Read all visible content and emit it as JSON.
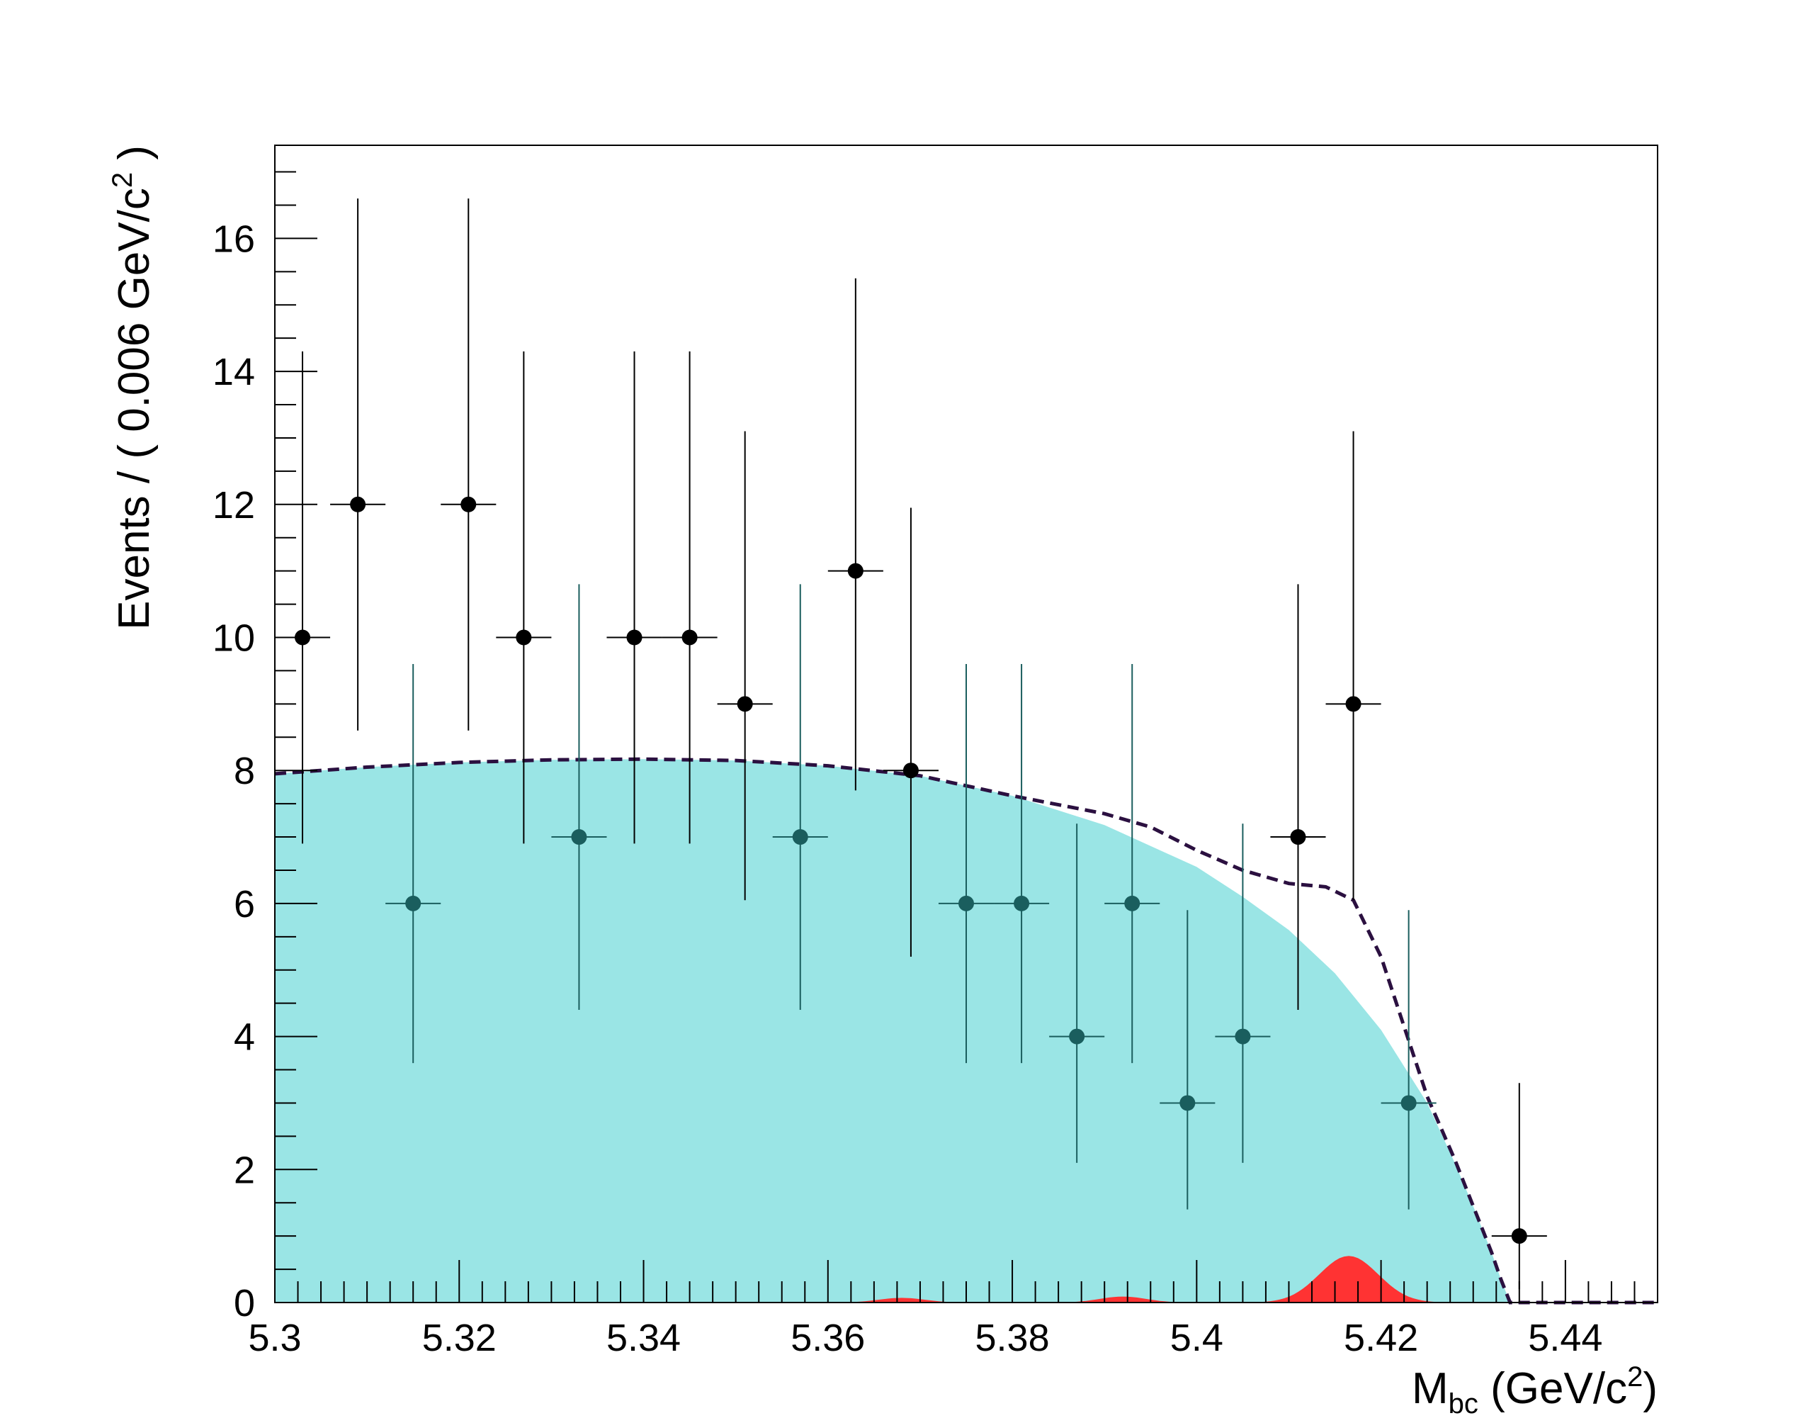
{
  "chart_data": {
    "type": "scatter",
    "xlabel": {
      "main": "M",
      "sub": "bc",
      "unit_pre": " (GeV/c",
      "sup": "2",
      "unit_post": ")"
    },
    "ylabel": {
      "pre": "Events / ( 0.006 GeV/c",
      "sup": "2",
      "post": " )"
    },
    "xlim": [
      5.3,
      5.45
    ],
    "ylim": [
      0,
      17.4
    ],
    "x_ticks": [
      5.3,
      5.32,
      5.34,
      5.36,
      5.38,
      5.4,
      5.42,
      5.44
    ],
    "x_tick_labels": [
      "5.3",
      "5.32",
      "5.34",
      "5.36",
      "5.38",
      "5.4",
      "5.42",
      "5.44"
    ],
    "y_ticks": [
      0,
      2,
      4,
      6,
      8,
      10,
      12,
      14,
      16
    ],
    "y_tick_labels": [
      "0",
      "2",
      "4",
      "6",
      "8",
      "10",
      "12",
      "14",
      "16"
    ],
    "points": {
      "x": [
        5.303,
        5.309,
        5.315,
        5.321,
        5.327,
        5.333,
        5.339,
        5.345,
        5.351,
        5.357,
        5.363,
        5.369,
        5.375,
        5.381,
        5.387,
        5.393,
        5.399,
        5.405,
        5.411,
        5.417,
        5.423,
        5.435
      ],
      "y": [
        10,
        12,
        6,
        12,
        10,
        7,
        10,
        10,
        9,
        7,
        11,
        8,
        6,
        6,
        4,
        6,
        3,
        4,
        7,
        9,
        3,
        1
      ],
      "y_err_low": [
        3.1,
        3.4,
        2.4,
        3.4,
        3.1,
        2.6,
        3.1,
        3.1,
        2.95,
        2.6,
        3.3,
        2.8,
        2.4,
        2.4,
        1.9,
        2.4,
        1.6,
        1.9,
        2.6,
        2.95,
        1.6,
        0.8
      ],
      "y_err_high": [
        4.3,
        4.6,
        3.6,
        4.6,
        4.3,
        3.8,
        4.3,
        4.3,
        4.1,
        3.8,
        4.4,
        3.95,
        3.6,
        3.6,
        3.2,
        3.6,
        2.9,
        3.2,
        3.8,
        4.1,
        2.9,
        2.3
      ],
      "x_err": 0.003
    },
    "background": {
      "name": "background",
      "color": "#9ae5e5",
      "x": [
        5.3,
        5.31,
        5.32,
        5.33,
        5.34,
        5.35,
        5.36,
        5.37,
        5.38,
        5.39,
        5.4,
        5.405,
        5.41,
        5.415,
        5.42,
        5.425,
        5.428,
        5.43,
        5.432,
        5.433,
        5.434
      ],
      "y": [
        7.95,
        8.05,
        8.12,
        8.16,
        8.17,
        8.15,
        8.07,
        7.92,
        7.62,
        7.18,
        6.55,
        6.1,
        5.6,
        4.95,
        4.1,
        3.0,
        2.1,
        1.45,
        0.75,
        0.35,
        0.0
      ]
    },
    "signal": {
      "name": "signal",
      "color": "#ff3333",
      "peaks": [
        {
          "mu": 5.4165,
          "sigma": 0.0032,
          "amp": 0.7
        },
        {
          "mu": 5.368,
          "sigma": 0.0025,
          "amp": 0.07
        },
        {
          "mu": 5.392,
          "sigma": 0.0025,
          "amp": 0.09
        }
      ]
    },
    "total": {
      "name": "total",
      "color": "#2b1040",
      "style": "dashed",
      "x": [
        5.3,
        5.31,
        5.32,
        5.33,
        5.34,
        5.35,
        5.36,
        5.37,
        5.38,
        5.39,
        5.395,
        5.4,
        5.405,
        5.41,
        5.414,
        5.417,
        5.42,
        5.425,
        5.428,
        5.43,
        5.432,
        5.433,
        5.434,
        5.45
      ],
      "y": [
        7.95,
        8.05,
        8.12,
        8.16,
        8.17,
        8.15,
        8.07,
        7.92,
        7.62,
        7.35,
        7.15,
        6.8,
        6.5,
        6.3,
        6.25,
        6.05,
        5.2,
        3.1,
        2.15,
        1.45,
        0.75,
        0.35,
        0.0,
        0.0
      ]
    },
    "grid": false,
    "legend": "none"
  }
}
